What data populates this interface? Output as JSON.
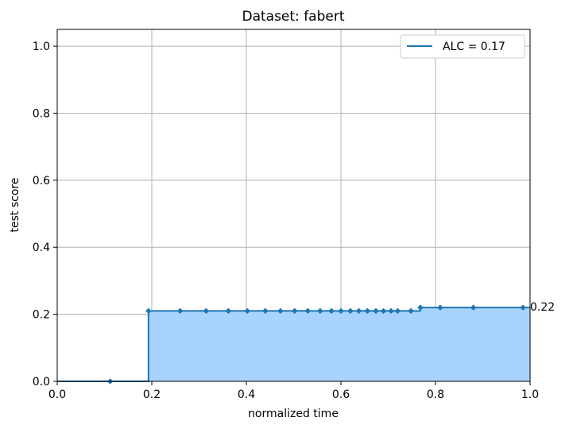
{
  "chart_data": {
    "type": "line",
    "title": "Dataset: fabert",
    "xlabel": "normalized time",
    "ylabel": "test score",
    "xlim": [
      0.0,
      1.0
    ],
    "ylim": [
      0.0,
      1.05
    ],
    "xticks": [
      "0.0",
      "0.2",
      "0.4",
      "0.6",
      "0.8",
      "1.0"
    ],
    "yticks": [
      "0.0",
      "0.2",
      "0.4",
      "0.6",
      "0.8",
      "1.0"
    ],
    "grid": true,
    "legend_position": "top-right",
    "series": [
      {
        "name": "ALC = 0.17",
        "drawstyle": "steps-post",
        "fill_under": true,
        "x": [
          0.112,
          0.193,
          0.26,
          0.315,
          0.362,
          0.402,
          0.44,
          0.472,
          0.502,
          0.53,
          0.556,
          0.58,
          0.6,
          0.62,
          0.638,
          0.656,
          0.674,
          0.69,
          0.706,
          0.72,
          0.748,
          0.768,
          0.81,
          0.88,
          0.985
        ],
        "y": [
          0.0,
          0.21,
          0.21,
          0.21,
          0.21,
          0.21,
          0.21,
          0.21,
          0.21,
          0.21,
          0.21,
          0.21,
          0.21,
          0.21,
          0.21,
          0.21,
          0.21,
          0.21,
          0.21,
          0.21,
          0.21,
          0.22,
          0.22,
          0.22,
          0.22
        ]
      }
    ],
    "annotation": {
      "text": "0.22",
      "x": 1.0,
      "y": 0.22
    },
    "colors": {
      "line": "#1f77b4",
      "fill": "#a8d3ff",
      "grid": "#b0b0b0"
    }
  }
}
